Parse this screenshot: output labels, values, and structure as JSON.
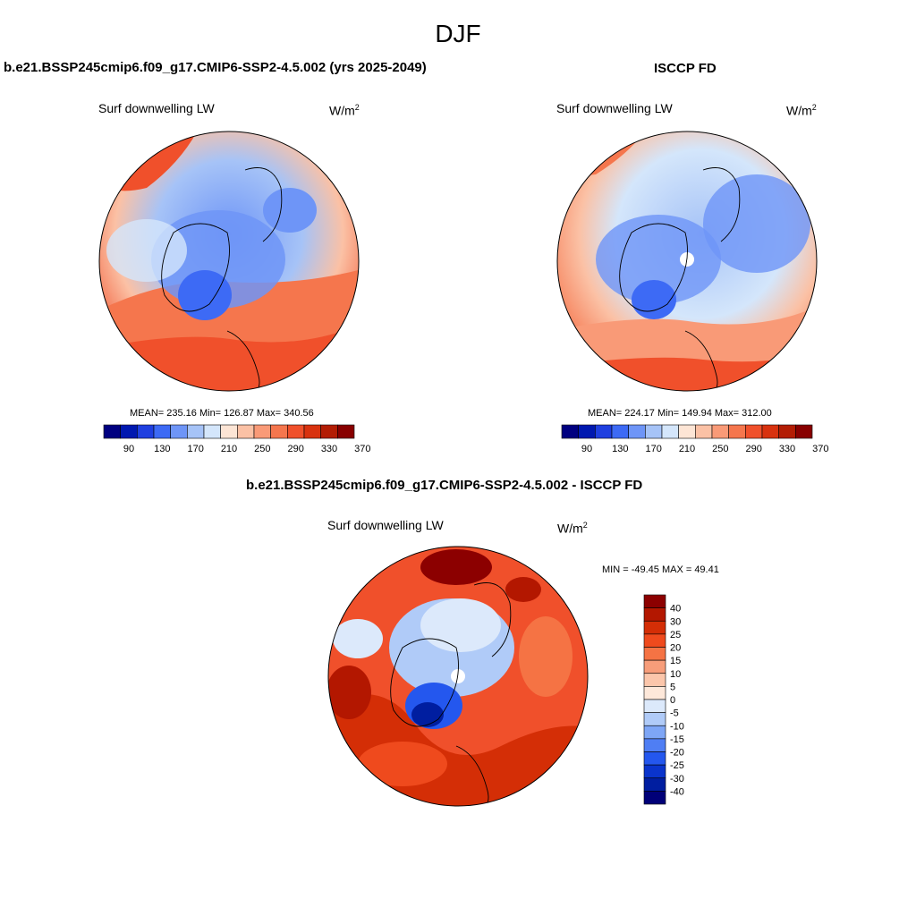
{
  "page_title": "DJF",
  "panels": {
    "model": {
      "title": "b.e21.BSSP245cmip6.f09_g17.CMIP6-SSP2-4.5.002 (yrs 2025-2049)",
      "var_label": "Surf downwelling LW",
      "units": "W/m",
      "units_exp": "2",
      "stats": "MEAN= 235.16  Min= 126.87  Max= 340.56"
    },
    "obs": {
      "title": "ISCCP FD",
      "var_label": "Surf downwelling LW",
      "units": "W/m",
      "units_exp": "2",
      "stats": "MEAN= 224.17  Min= 149.94  Max= 312.00"
    },
    "diff": {
      "title": "b.e21.BSSP245cmip6.f09_g17.CMIP6-SSP2-4.5.002 - ISCCP FD",
      "var_label": "Surf downwelling LW",
      "units": "W/m",
      "units_exp": "2",
      "stats": "MIN = -49.45 MAX =  49.41"
    }
  },
  "chart_data": [
    {
      "type": "heatmap",
      "projection": "north polar stereographic",
      "title": "b.e21.BSSP245cmip6.f09_g17.CMIP6-SSP2-4.5.002 (yrs 2025-2049)",
      "variable": "Surf downwelling LW",
      "units": "W/m2",
      "mean": 235.16,
      "min": 126.87,
      "max": 340.56,
      "colorbar": {
        "orientation": "horizontal",
        "tick_labels": [
          "90",
          "130",
          "170",
          "210",
          "250",
          "290",
          "330",
          "370"
        ],
        "colors": [
          "#000080",
          "#0018b0",
          "#1f3fe0",
          "#3d6af5",
          "#6e95f7",
          "#a6c3f7",
          "#d4e6fb",
          "#fde5d5",
          "#fbc1a5",
          "#f99a77",
          "#f5764d",
          "#f0502b",
          "#d8320f",
          "#b31d04",
          "#880000"
        ]
      }
    },
    {
      "type": "heatmap",
      "projection": "north polar stereographic",
      "title": "ISCCP FD",
      "variable": "Surf downwelling LW",
      "units": "W/m2",
      "mean": 224.17,
      "min": 149.94,
      "max": 312.0,
      "colorbar": {
        "orientation": "horizontal",
        "tick_labels": [
          "90",
          "130",
          "170",
          "210",
          "250",
          "290",
          "330",
          "370"
        ],
        "colors": [
          "#000080",
          "#0018b0",
          "#1f3fe0",
          "#3d6af5",
          "#6e95f7",
          "#a6c3f7",
          "#d4e6fb",
          "#fde5d5",
          "#fbc1a5",
          "#f99a77",
          "#f5764d",
          "#f0502b",
          "#d8320f",
          "#b31d04",
          "#880000"
        ]
      }
    },
    {
      "type": "heatmap",
      "projection": "north polar stereographic",
      "title": "b.e21.BSSP245cmip6.f09_g17.CMIP6-SSP2-4.5.002 - ISCCP FD",
      "variable": "Surf downwelling LW",
      "units": "W/m2",
      "min": -49.45,
      "max": 49.41,
      "colorbar": {
        "orientation": "vertical",
        "tick_labels": [
          "40",
          "30",
          "25",
          "20",
          "15",
          "10",
          "5",
          "0",
          "-5",
          "-10",
          "-15",
          "-20",
          "-25",
          "-30",
          "-40"
        ],
        "colors": [
          "#8c0000",
          "#b31700",
          "#d42e06",
          "#ef4a1d",
          "#f57344",
          "#f79d7a",
          "#fbc6ab",
          "#fde8da",
          "#dce9fb",
          "#b0cbf8",
          "#7ea6f6",
          "#4f7ef4",
          "#2457ee",
          "#0a34cc",
          "#001ea0",
          "#000078"
        ]
      }
    }
  ]
}
